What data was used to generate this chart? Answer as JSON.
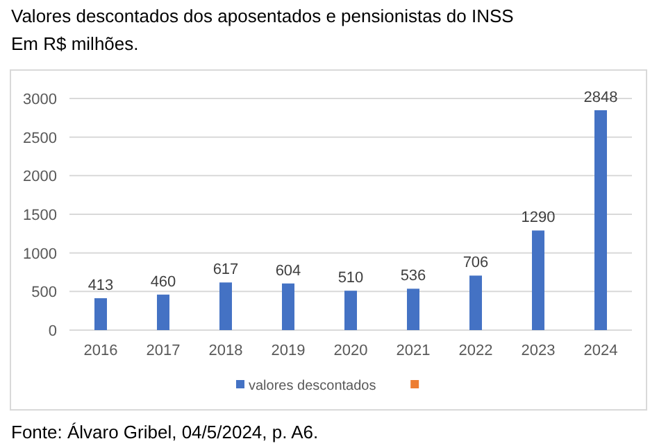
{
  "chart_data": {
    "type": "bar",
    "title": "Valores descontados dos aposentados e pensionistas do INSS",
    "subtitle": "Em R$ milhões.",
    "categories": [
      "2016",
      "2017",
      "2018",
      "2019",
      "2020",
      "2021",
      "2022",
      "2023",
      "2024"
    ],
    "series": [
      {
        "name": "valores descontados",
        "color": "#4472c4",
        "values": [
          413,
          460,
          617,
          604,
          510,
          536,
          706,
          1290,
          2848
        ]
      },
      {
        "color": "#ed7d31",
        "values": [
          null,
          null,
          null,
          null,
          null,
          null,
          null,
          null,
          null
        ]
      }
    ],
    "ylim": [
      0,
      3000
    ],
    "yticks": [
      0,
      500,
      1000,
      1500,
      2000,
      2500,
      3000
    ],
    "grid": "y",
    "data_labels": true,
    "legend": "bottom",
    "annotations": [
      "Fonte: Álvaro Gribel, 04/5/2024, p. A6."
    ]
  }
}
